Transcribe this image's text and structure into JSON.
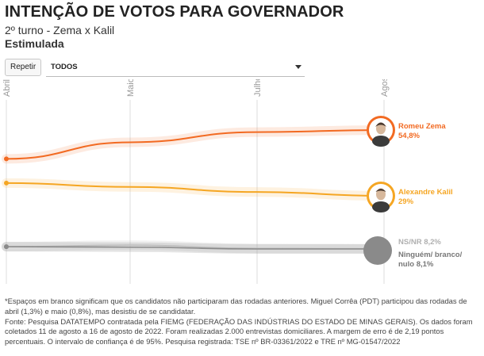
{
  "header": {
    "title": "INTENÇÃO DE VOTOS PARA GOVERNADOR",
    "subtitle": "2º turno - Zema x Kalil",
    "subtitle2": "Estimulada"
  },
  "controls": {
    "repeat_label": "Repetir",
    "filter_value": "TODOS"
  },
  "chart_data": {
    "type": "line",
    "x_ticks": [
      "Abril",
      "Maio",
      "Julho",
      "Agosto"
    ],
    "xlim": [
      "Abril",
      "Agosto"
    ],
    "ylim": [
      0,
      60
    ],
    "series": [
      {
        "name": "Romeu Zema",
        "label": "54,8%",
        "color": "#f26a22",
        "values": [
          43.5,
          50.0,
          54.0,
          54.8
        ],
        "avatar": "zema"
      },
      {
        "name": "Alexandre Kalil",
        "label": "29%",
        "color": "#f5a623",
        "values": [
          34.0,
          32.5,
          30.5,
          29.0
        ],
        "avatar": "kalil"
      },
      {
        "name": "NS/NR",
        "label": "8,2%",
        "color": "#bdbdbd",
        "values": [
          9.0,
          9.6,
          8.3,
          8.2
        ]
      },
      {
        "name": "Ninguém/ branco/ nulo",
        "label": "8,1%",
        "color": "#8a8a8a",
        "values": [
          9.0,
          8.8,
          8.0,
          8.1
        ]
      }
    ]
  },
  "notes": [
    "*Espaços em branco significam que os candidatos não participaram das rodadas anteriores. Miguel Corrêa (PDT) participou das rodadas de abril (1,3%) e maio (0,8%), mas desistiu de se candidatar.",
    "Fonte: Pesquisa DATATEMPO contratada pela FIEMG (FEDERAÇÃO DAS INDÚSTRIAS DO ESTADO DE MINAS GERAIS). Os dados foram coletados 11 de agosto a 16 de agosto de 2022. Foram realizadas 2.000 entrevistas domiciliares. A margem de erro é de 2,19 pontos percentuais. O intervalo de confiança é de 95%. Pesquisa registrada: TSE nº BR-03361/2022 e TRE nº MG-01547/2022"
  ]
}
